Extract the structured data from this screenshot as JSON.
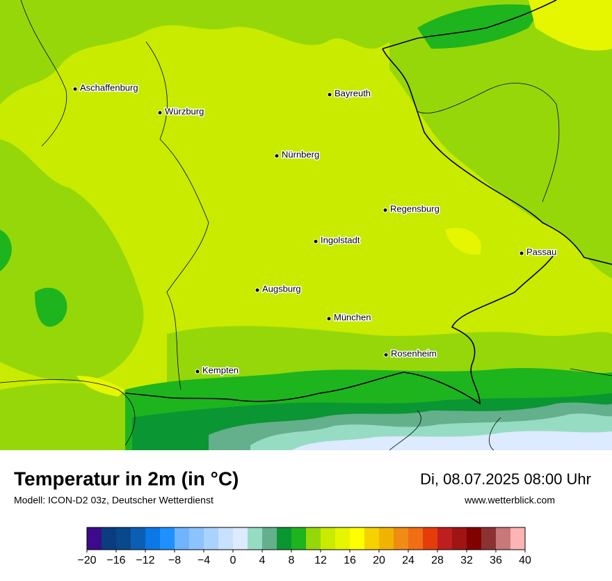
{
  "header": {
    "title": "Temperatur in 2m (in °C)",
    "subtitle": "Modell: ICON-D2 03z, Deutscher Wetterdienst",
    "datetime": "Di, 08.07.2025 08:00 Uhr",
    "source": "www.wetterblick.com"
  },
  "cities": [
    "Aschaffenburg",
    "Würzburg",
    "Bayreuth",
    "Nürnberg",
    "Regensburg",
    "Ingolstadt",
    "Passau",
    "Augsburg",
    "München",
    "Rosenheim",
    "Kempten"
  ],
  "colorbar": {
    "range": [
      -20,
      40
    ],
    "colors": [
      "#3d0a8c",
      "#0a3c82",
      "#08488c",
      "#0a5fb4",
      "#0a78e6",
      "#1e90ff",
      "#6eb4ff",
      "#8cc3ff",
      "#aad2ff",
      "#c8e1ff",
      "#dcebff",
      "#96dcc3",
      "#64af8c",
      "#0a9632",
      "#1eb41e",
      "#96d70a",
      "#c8eb00",
      "#e6f500",
      "#ffff00",
      "#f5d200",
      "#f0b400",
      "#f08c14",
      "#f06e14",
      "#e63c0a",
      "#be1e1e",
      "#a01414",
      "#820000",
      "#8c3232",
      "#c87878",
      "#ffb4b4"
    ],
    "ticks": [
      {
        "value": -20,
        "label": "−20"
      },
      {
        "value": -16,
        "label": "−16"
      },
      {
        "value": -12,
        "label": "−12"
      },
      {
        "value": -8,
        "label": "−8"
      },
      {
        "value": -4,
        "label": "−4"
      },
      0,
      4,
      8,
      12,
      16,
      20,
      24,
      28,
      32,
      36,
      40
    ]
  }
}
